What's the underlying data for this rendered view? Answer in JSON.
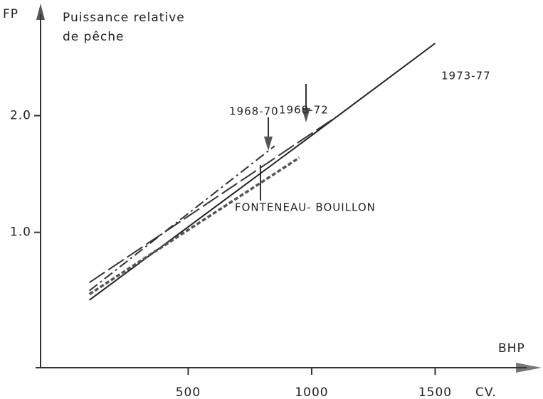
{
  "chart_data": {
    "type": "line",
    "y_label_short": "FP",
    "y_label_line1": "Puissance relative",
    "y_label_line2": "de pêche",
    "x_label": "BHP",
    "x_unit": "CV.",
    "xlim": [
      -118,
      1928
    ],
    "ylim": [
      -0.16,
      2.93
    ],
    "xticks": [
      500,
      1000,
      1500
    ],
    "yticks": [
      {
        "value": 1.0,
        "label": "1.0"
      },
      {
        "value": 2.0,
        "label": "2.0"
      }
    ],
    "series": [
      {
        "name": "1973-77",
        "color": "#222",
        "style": "solid",
        "x": [
          100,
          1000,
          1500
        ],
        "values": [
          0.42,
          1.83,
          2.62
        ]
      },
      {
        "name": "1968-72",
        "color": "#333",
        "style": "dashed",
        "x": [
          100,
          1100
        ],
        "values": [
          0.57,
          1.99
        ]
      },
      {
        "name": "1968-70",
        "color": "#333",
        "style": "dashdot",
        "x": [
          100,
          850
        ],
        "values": [
          0.5,
          1.74
        ]
      },
      {
        "name": "FONTENEAU- BOUILLON",
        "color": "#555",
        "style": "dotted",
        "x": [
          100,
          950
        ],
        "values": [
          0.47,
          1.64
        ]
      }
    ]
  }
}
